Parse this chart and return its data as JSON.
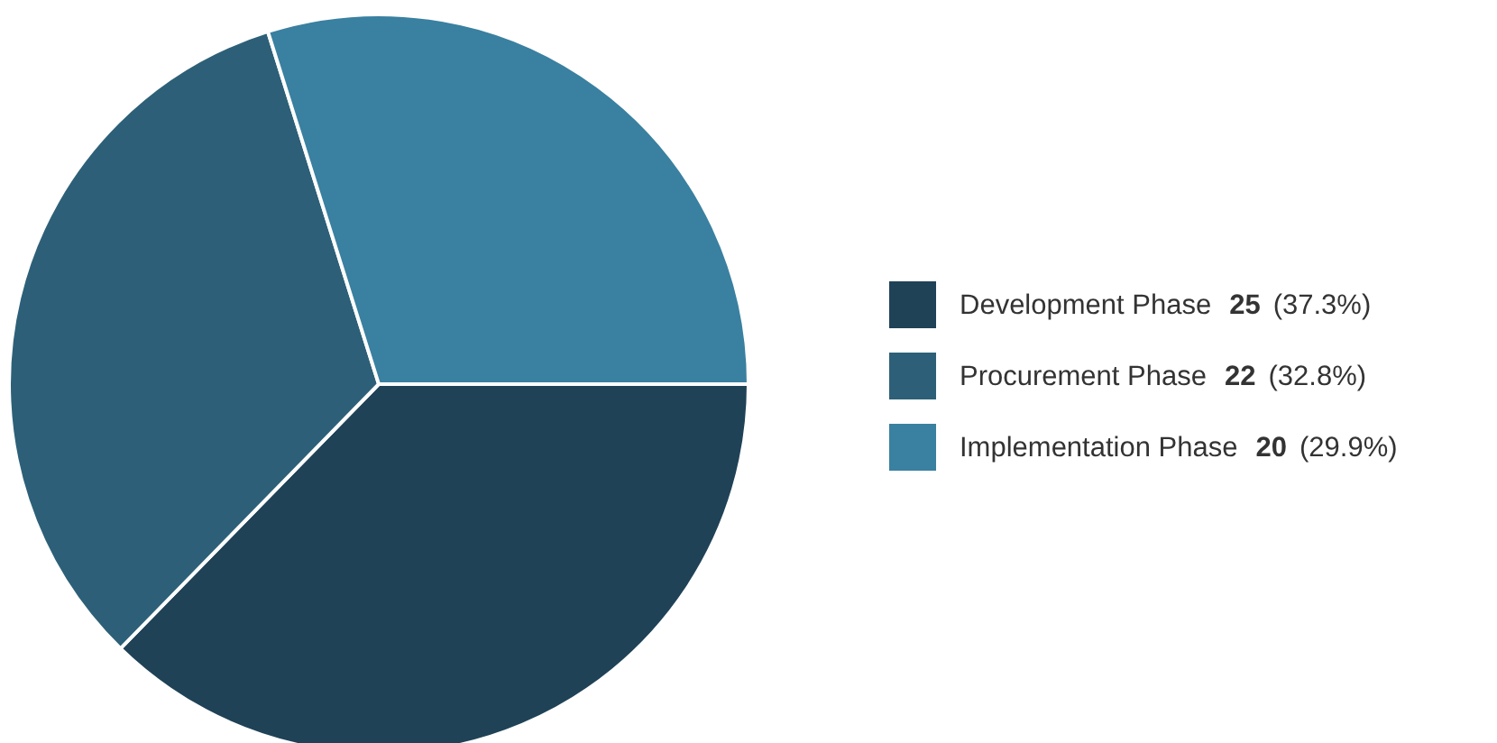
{
  "chart_data": {
    "type": "pie",
    "categories": [
      "Development Phase",
      "Procurement Phase",
      "Implementation Phase"
    ],
    "values": [
      25,
      22,
      20
    ],
    "colors": [
      "#1f4257",
      "#2d6078",
      "#3a80a0"
    ],
    "value_labels": [
      "25 (37.3%)",
      "22 (32.8%)",
      "20 (29.9%)"
    ],
    "legend": "right"
  }
}
